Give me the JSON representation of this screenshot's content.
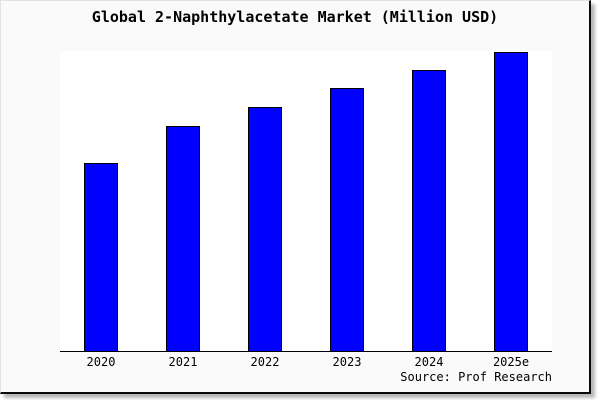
{
  "chart_data": {
    "type": "bar",
    "title": "Global 2-Naphthylacetate Market (Million USD)",
    "categories": [
      "2020",
      "2021",
      "2022",
      "2023",
      "2024",
      "2025e"
    ],
    "values": [
      188,
      225,
      244,
      263,
      281,
      299
    ],
    "value_note": "y-axis has no tick labels; values are relative bar heights in pixels (plot height 300)",
    "ylim": [
      0,
      300
    ],
    "xlabel": "",
    "ylabel": "",
    "grid": false,
    "legend": false,
    "source": "Source: Prof Research",
    "colors": {
      "bar_fill": "#0000ff",
      "bar_border": "#000000",
      "plot_background": "#ffffff",
      "canvas_background": "#fafafa",
      "axis": "#000000",
      "text": "#000000"
    }
  }
}
